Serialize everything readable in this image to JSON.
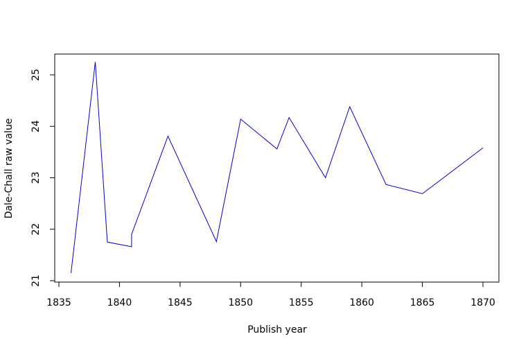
{
  "chart_data": {
    "type": "line",
    "title": "",
    "xlabel": "Publish year",
    "ylabel": "Dale-Chall raw value",
    "xlim": [
      1835,
      1870
    ],
    "ylim": [
      21,
      25
    ],
    "x_ticks": [
      1835,
      1840,
      1845,
      1850,
      1855,
      1860,
      1865,
      1870
    ],
    "y_ticks": [
      21,
      22,
      23,
      24,
      25
    ],
    "grid": false,
    "legend": "none",
    "series": [
      {
        "color": "#0000cd",
        "x": [
          1836,
          1838,
          1839,
          1841,
          1841,
          1844,
          1848,
          1850,
          1853,
          1854,
          1857,
          1859,
          1862,
          1865,
          1870
        ],
        "y": [
          21.15,
          25.25,
          21.75,
          21.66,
          21.9,
          23.81,
          21.76,
          24.14,
          23.56,
          24.17,
          23.0,
          24.38,
          22.87,
          22.69,
          23.58
        ]
      }
    ]
  }
}
